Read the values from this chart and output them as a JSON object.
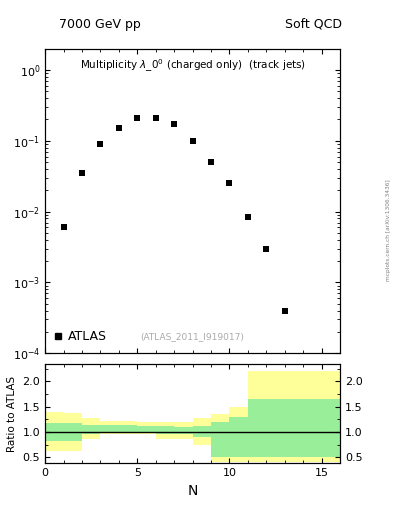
{
  "title_left": "7000 GeV pp",
  "title_right": "Soft QCD",
  "plot_title": "Multiplicity $\\lambda\\_0^0$ (charged only)  (track jets)",
  "atlas_label": "ATLAS",
  "atlas_ref": "(ATLAS_2011_I919017)",
  "mcplots_text": "mcplots.cern.ch [arXiv:1306.3436]",
  "data_x": [
    1,
    2,
    3,
    4,
    5,
    6,
    7,
    8,
    9,
    10,
    11,
    12,
    13
  ],
  "data_y": [
    0.006,
    0.035,
    0.09,
    0.15,
    0.21,
    0.21,
    0.17,
    0.1,
    0.05,
    0.025,
    0.0085,
    0.003,
    0.0004
  ],
  "data_color": "#000000",
  "data_marker": "s",
  "data_markersize": 4,
  "ylim_main": [
    0.0001,
    2.0
  ],
  "xlim_main": [
    0,
    16
  ],
  "xlabel_ratio": "N",
  "ylabel_ratio": "Ratio to ATLAS",
  "ylim_ratio": [
    0.38,
    2.35
  ],
  "xlim_ratio": [
    0,
    16
  ],
  "ratio_line_y": 1.0,
  "yellow_band_edges": [
    0,
    1,
    2,
    3,
    4,
    5,
    6,
    7,
    8,
    9,
    10,
    11,
    12,
    13,
    16
  ],
  "yellow_band_lo": [
    0.62,
    0.62,
    0.87,
    0.95,
    0.95,
    0.95,
    0.87,
    0.87,
    0.75,
    0.4,
    0.4,
    0.4,
    0.4,
    0.4,
    0.4
  ],
  "yellow_band_hi": [
    1.4,
    1.38,
    1.28,
    1.22,
    1.22,
    1.2,
    1.2,
    1.2,
    1.28,
    1.35,
    1.5,
    2.2,
    2.2,
    2.2,
    2.2
  ],
  "green_band_edges": [
    0,
    1,
    2,
    3,
    4,
    5,
    6,
    7,
    8,
    9,
    10,
    11,
    12,
    13,
    16
  ],
  "green_band_lo": [
    0.82,
    0.82,
    0.96,
    1.0,
    1.0,
    1.0,
    0.96,
    0.96,
    0.9,
    0.5,
    0.5,
    0.5,
    0.5,
    0.5,
    0.5
  ],
  "green_band_hi": [
    1.18,
    1.18,
    1.14,
    1.14,
    1.14,
    1.12,
    1.12,
    1.1,
    1.12,
    1.2,
    1.3,
    1.65,
    1.65,
    1.65,
    1.65
  ],
  "yellow_color": "#ffff99",
  "green_color": "#99ee99",
  "background_color": "#ffffff"
}
